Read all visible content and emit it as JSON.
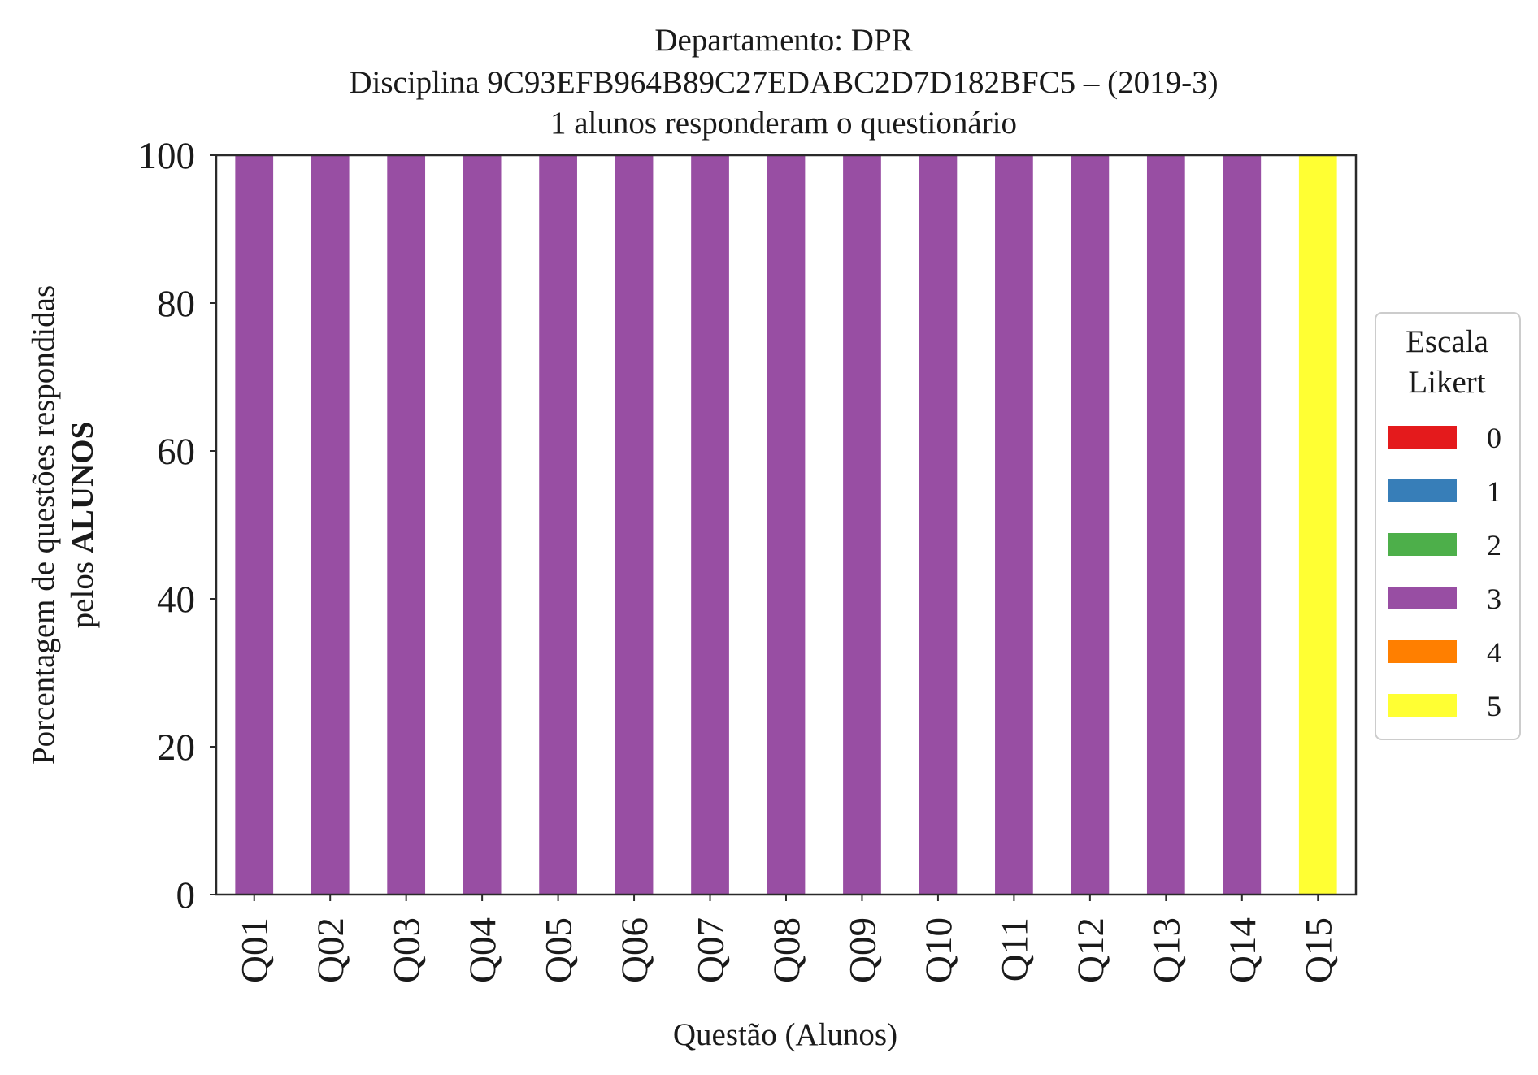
{
  "chart_data": {
    "type": "bar",
    "stacked": true,
    "title_lines": [
      "Departamento: DPR",
      "Disciplina 9C93EFB964B89C27EDABC2D7D182BFC5 – (2019-3)",
      "1 alunos responderam o questionário"
    ],
    "xlabel": "Questão (Alunos)",
    "ylabel_line1": "Porcentagem de questões respondidas",
    "ylabel_line2_prefix": "pelos ",
    "ylabel_line2_bold": "ALUNOS",
    "ylim": [
      0,
      100
    ],
    "yticks": [
      0,
      20,
      40,
      60,
      80,
      100
    ],
    "categories": [
      "Q01",
      "Q02",
      "Q03",
      "Q04",
      "Q05",
      "Q06",
      "Q07",
      "Q08",
      "Q09",
      "Q10",
      "Q11",
      "Q12",
      "Q13",
      "Q14",
      "Q15"
    ],
    "legend": {
      "title_lines": [
        "Escala",
        "Likert"
      ],
      "placement": "right"
    },
    "series": [
      {
        "name": "0",
        "color": "#e41a1c",
        "values": [
          0,
          0,
          0,
          0,
          0,
          0,
          0,
          0,
          0,
          0,
          0,
          0,
          0,
          0,
          0
        ]
      },
      {
        "name": "1",
        "color": "#377eb8",
        "values": [
          0,
          0,
          0,
          0,
          0,
          0,
          0,
          0,
          0,
          0,
          0,
          0,
          0,
          0,
          0
        ]
      },
      {
        "name": "2",
        "color": "#4daf4a",
        "values": [
          0,
          0,
          0,
          0,
          0,
          0,
          0,
          0,
          0,
          0,
          0,
          0,
          0,
          0,
          0
        ]
      },
      {
        "name": "3",
        "color": "#984ea3",
        "values": [
          100,
          100,
          100,
          100,
          100,
          100,
          100,
          100,
          100,
          100,
          100,
          100,
          100,
          100,
          0
        ]
      },
      {
        "name": "4",
        "color": "#ff7f00",
        "values": [
          0,
          0,
          0,
          0,
          0,
          0,
          0,
          0,
          0,
          0,
          0,
          0,
          0,
          0,
          0
        ]
      },
      {
        "name": "5",
        "color": "#ffff33",
        "values": [
          0,
          0,
          0,
          0,
          0,
          0,
          0,
          0,
          0,
          0,
          0,
          0,
          0,
          0,
          100
        ]
      }
    ],
    "grid": false
  }
}
